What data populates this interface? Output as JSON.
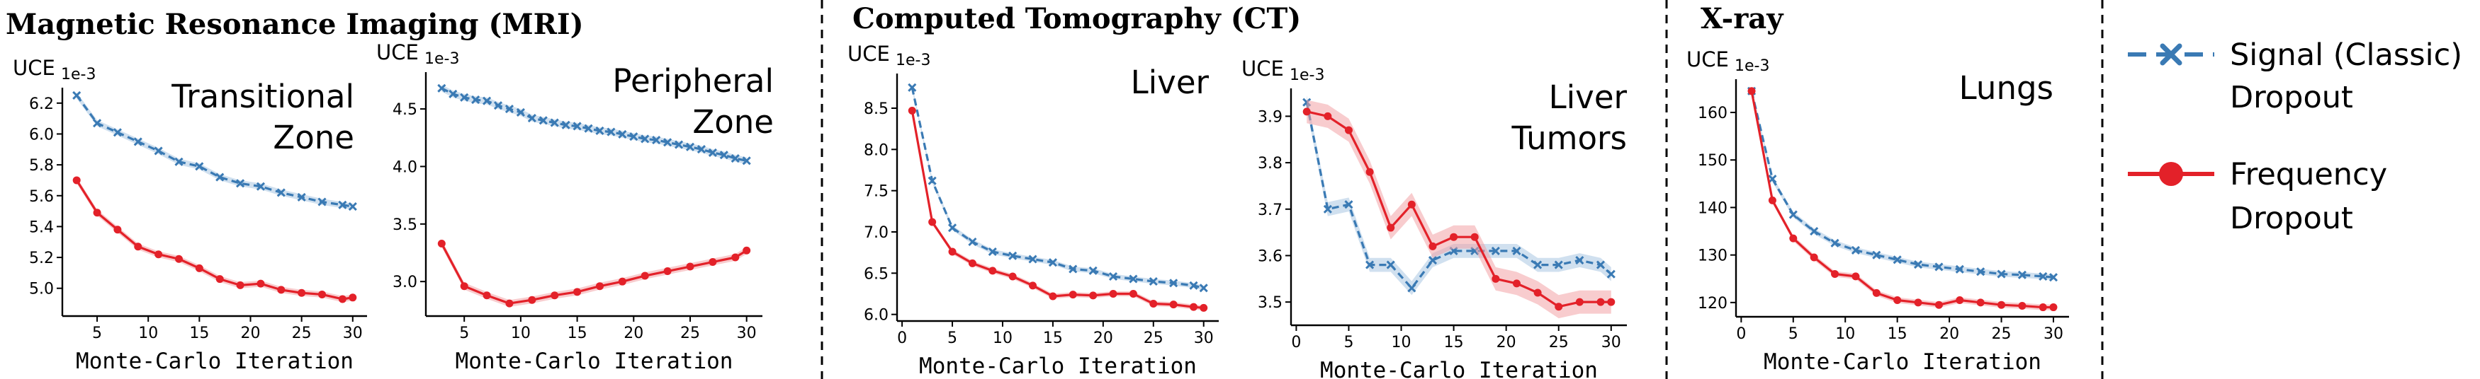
{
  "sections": [
    "Magnetic Resonance Imaging (MRI)",
    "Computed Tomography (CT)",
    "X-ray"
  ],
  "legend": {
    "signal": [
      "Signal (Classic)",
      "Dropout"
    ],
    "frequency": [
      "Frequency",
      "Dropout"
    ]
  },
  "colors": {
    "signal": "#3a7ab4",
    "signal_band": "#a9c6e2",
    "frequency": "#e32129",
    "frequency_band": "#f2a3a6"
  },
  "chart_data": [
    {
      "type": "line",
      "title_lines": [
        "Transitional",
        "Zone"
      ],
      "xlabel": "Monte-Carlo Iteration",
      "ylabel": "UCE",
      "offset_label": "1e-3",
      "xlim": [
        1.6,
        31.4
      ],
      "ylim": [
        4.82,
        6.3
      ],
      "xticks": [
        5,
        10,
        15,
        20,
        25,
        30
      ],
      "xtick_labels": [
        "5",
        "10",
        "15",
        "20",
        "25",
        "30"
      ],
      "yticks": [
        5.0,
        5.2,
        5.4,
        5.6,
        5.8,
        6.0,
        6.2
      ],
      "ytick_labels": [
        "5.0",
        "5.2",
        "5.4",
        "5.6",
        "5.8",
        "6.0",
        "6.2"
      ],
      "series": [
        {
          "name": "Signal (Classic) Dropout",
          "x": [
            3,
            5,
            7,
            9,
            11,
            13,
            15,
            17,
            19,
            21,
            23,
            25,
            27,
            29,
            30
          ],
          "values": [
            6.25,
            6.07,
            6.01,
            5.95,
            5.89,
            5.82,
            5.79,
            5.72,
            5.68,
            5.66,
            5.62,
            5.59,
            5.56,
            5.54,
            5.53
          ],
          "band": 0.02
        },
        {
          "name": "Frequency Dropout",
          "x": [
            3,
            5,
            7,
            9,
            11,
            13,
            15,
            17,
            19,
            21,
            23,
            25,
            27,
            29,
            30
          ],
          "values": [
            5.7,
            5.49,
            5.38,
            5.27,
            5.22,
            5.19,
            5.13,
            5.06,
            5.02,
            5.03,
            4.99,
            4.97,
            4.96,
            4.93,
            4.94
          ],
          "band": 0.02
        }
      ]
    },
    {
      "type": "line",
      "title_lines": [
        "Peripheral",
        "Zone"
      ],
      "xlabel": "Monte-Carlo Iteration",
      "ylabel": "UCE",
      "offset_label": "1e-3",
      "xlim": [
        1.6,
        31.4
      ],
      "ylim": [
        2.7,
        4.82
      ],
      "xticks": [
        5,
        10,
        15,
        20,
        25,
        30
      ],
      "xtick_labels": [
        "5",
        "10",
        "15",
        "20",
        "25",
        "30"
      ],
      "yticks": [
        3.0,
        3.5,
        4.0,
        4.5
      ],
      "ytick_labels": [
        "3.0",
        "3.5",
        "4.0",
        "4.5"
      ],
      "series": [
        {
          "name": "Signal (Classic) Dropout",
          "x": [
            3,
            4,
            5,
            6,
            7,
            8,
            9,
            10,
            11,
            12,
            13,
            14,
            15,
            16,
            17,
            18,
            19,
            20,
            21,
            22,
            23,
            24,
            25,
            26,
            27,
            28,
            29,
            30
          ],
          "values": [
            4.68,
            4.63,
            4.6,
            4.58,
            4.57,
            4.53,
            4.5,
            4.47,
            4.42,
            4.4,
            4.38,
            4.36,
            4.35,
            4.33,
            4.31,
            4.3,
            4.28,
            4.26,
            4.24,
            4.23,
            4.21,
            4.19,
            4.17,
            4.15,
            4.12,
            4.1,
            4.07,
            4.05
          ],
          "band": 0.03
        },
        {
          "name": "Frequency Dropout",
          "x": [
            3,
            5,
            7,
            9,
            11,
            13,
            15,
            17,
            19,
            21,
            23,
            25,
            27,
            29,
            30
          ],
          "values": [
            3.33,
            2.96,
            2.88,
            2.81,
            2.84,
            2.88,
            2.91,
            2.96,
            3.0,
            3.05,
            3.09,
            3.13,
            3.17,
            3.21,
            3.27
          ],
          "band": 0.03
        }
      ]
    },
    {
      "type": "line",
      "title_lines": [
        "Liver"
      ],
      "xlabel": "Monte-Carlo Iteration",
      "ylabel": "UCE",
      "offset_label": "1e-3",
      "xlim": [
        -0.5,
        31.5
      ],
      "ylim": [
        5.92,
        8.92
      ],
      "xticks": [
        0,
        5,
        10,
        15,
        20,
        25,
        30
      ],
      "xtick_labels": [
        "0",
        "5",
        "10",
        "15",
        "20",
        "25",
        "30"
      ],
      "yticks": [
        6.0,
        6.5,
        7.0,
        7.5,
        8.0,
        8.5
      ],
      "ytick_labels": [
        "6.0",
        "6.5",
        "7.0",
        "7.5",
        "8.0",
        "8.5"
      ],
      "series": [
        {
          "name": "Signal (Classic) Dropout",
          "x": [
            1,
            3,
            5,
            7,
            9,
            11,
            13,
            15,
            17,
            19,
            21,
            23,
            25,
            27,
            29,
            30
          ],
          "values": [
            8.75,
            7.62,
            7.05,
            6.88,
            6.76,
            6.71,
            6.67,
            6.63,
            6.55,
            6.53,
            6.46,
            6.43,
            6.4,
            6.38,
            6.35,
            6.32
          ],
          "band": 0.03
        },
        {
          "name": "Frequency Dropout",
          "x": [
            1,
            3,
            5,
            7,
            9,
            11,
            13,
            15,
            17,
            19,
            21,
            23,
            25,
            27,
            29,
            30
          ],
          "values": [
            8.47,
            7.12,
            6.76,
            6.62,
            6.53,
            6.46,
            6.35,
            6.22,
            6.24,
            6.23,
            6.25,
            6.25,
            6.13,
            6.12,
            6.09,
            6.08
          ],
          "band": 0.03
        }
      ]
    },
    {
      "type": "line",
      "title_lines": [
        "Liver",
        "Tumors"
      ],
      "xlabel": "Monte-Carlo Iteration",
      "ylabel": "UCE",
      "offset_label": "1e-3",
      "xlim": [
        -0.5,
        31.5
      ],
      "ylim": [
        3.45,
        3.96
      ],
      "xticks": [
        0,
        5,
        10,
        15,
        20,
        25,
        30
      ],
      "xtick_labels": [
        "0",
        "5",
        "10",
        "15",
        "20",
        "25",
        "30"
      ],
      "yticks": [
        3.5,
        3.6,
        3.7,
        3.8,
        3.9
      ],
      "ytick_labels": [
        "3.5",
        "3.6",
        "3.7",
        "3.8",
        "3.9"
      ],
      "series": [
        {
          "name": "Signal (Classic) Dropout",
          "x": [
            1,
            3,
            5,
            7,
            9,
            11,
            13,
            15,
            17,
            19,
            21,
            23,
            25,
            27,
            29,
            30
          ],
          "values": [
            3.93,
            3.7,
            3.71,
            3.58,
            3.58,
            3.53,
            3.59,
            3.61,
            3.61,
            3.61,
            3.61,
            3.58,
            3.58,
            3.59,
            3.58,
            3.56
          ],
          "band": 0.015
        },
        {
          "name": "Frequency Dropout",
          "x": [
            1,
            3,
            5,
            7,
            9,
            11,
            13,
            15,
            17,
            19,
            21,
            23,
            25,
            27,
            29,
            30
          ],
          "values": [
            3.91,
            3.9,
            3.87,
            3.78,
            3.66,
            3.71,
            3.62,
            3.64,
            3.64,
            3.55,
            3.54,
            3.52,
            3.49,
            3.5,
            3.5,
            3.5
          ],
          "band": 0.025
        }
      ]
    },
    {
      "type": "line",
      "title_lines": [
        "Lungs"
      ],
      "xlabel": "Monte-Carlo Iteration",
      "ylabel": "UCE",
      "offset_label": "1e-3",
      "xlim": [
        -0.5,
        31.5
      ],
      "ylim": [
        117.0,
        167.0
      ],
      "xticks": [
        0,
        5,
        10,
        15,
        20,
        25,
        30
      ],
      "xtick_labels": [
        "0",
        "5",
        "10",
        "15",
        "20",
        "25",
        "30"
      ],
      "yticks": [
        120,
        130,
        140,
        150,
        160
      ],
      "ytick_labels": [
        "120",
        "130",
        "140",
        "150",
        "160"
      ],
      "series": [
        {
          "name": "Signal (Classic) Dropout",
          "x": [
            1,
            3,
            5,
            7,
            9,
            11,
            13,
            15,
            17,
            19,
            21,
            23,
            25,
            27,
            29,
            30
          ],
          "values": [
            164.5,
            146.0,
            138.5,
            135.0,
            132.5,
            131.0,
            130.0,
            129.0,
            128.0,
            127.5,
            127.0,
            126.5,
            126.0,
            125.8,
            125.5,
            125.3
          ],
          "band": 0.6
        },
        {
          "name": "Frequency Dropout",
          "x": [
            1,
            3,
            5,
            7,
            9,
            11,
            13,
            15,
            17,
            19,
            21,
            23,
            25,
            27,
            29,
            30
          ],
          "values": [
            164.5,
            141.5,
            133.5,
            129.5,
            126.0,
            125.5,
            122.0,
            120.5,
            120.0,
            119.5,
            120.5,
            120.0,
            119.5,
            119.3,
            119.0,
            119.0
          ],
          "band": 0.6
        }
      ]
    }
  ]
}
